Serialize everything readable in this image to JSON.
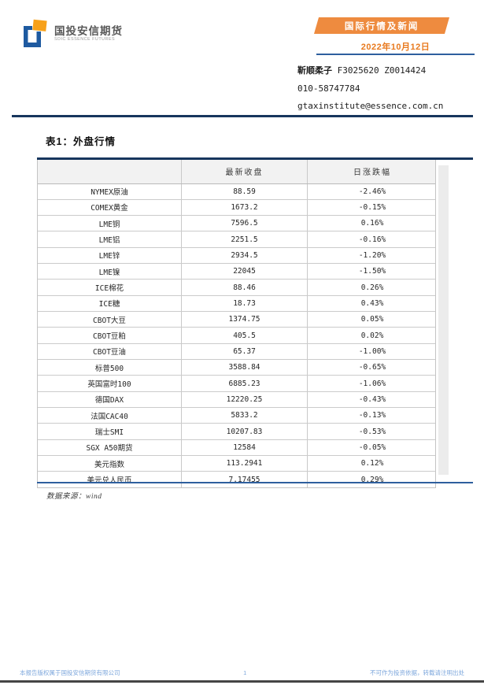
{
  "header": {
    "logo": {
      "cn": "国投安信期货",
      "en": "SDIC ESSENCE FUTURES"
    },
    "badge": "国际行情及新闻",
    "date": "2022年10月12日",
    "analyst": {
      "name": "靳顺柔子",
      "ids": "F3025620 Z0014424",
      "phone": "010-58747784",
      "email": "gtaxinstitute@essence.com.cn"
    }
  },
  "table": {
    "title": "表1：外盘行情",
    "columns": [
      "",
      "最新收盘",
      "日涨跌幅"
    ],
    "rows": [
      {
        "name": "NYMEX原油",
        "close": "88.59",
        "change": "-2.46%"
      },
      {
        "name": "COMEX黄金",
        "close": "1673.2",
        "change": "-0.15%"
      },
      {
        "name": "LME铜",
        "close": "7596.5",
        "change": "0.16%"
      },
      {
        "name": "LME铝",
        "close": "2251.5",
        "change": "-0.16%"
      },
      {
        "name": "LME锌",
        "close": "2934.5",
        "change": "-1.20%"
      },
      {
        "name": "LME镍",
        "close": "22045",
        "change": "-1.50%"
      },
      {
        "name": "ICE棉花",
        "close": "88.46",
        "change": "0.26%"
      },
      {
        "name": "ICE糖",
        "close": "18.73",
        "change": "0.43%"
      },
      {
        "name": "CBOT大豆",
        "close": "1374.75",
        "change": "0.05%"
      },
      {
        "name": "CBOT豆粕",
        "close": "405.5",
        "change": "0.02%"
      },
      {
        "name": "CBOT豆油",
        "close": "65.37",
        "change": "-1.00%"
      },
      {
        "name": "标普500",
        "close": "3588.84",
        "change": "-0.65%"
      },
      {
        "name": "英国富时100",
        "close": "6885.23",
        "change": "-1.06%"
      },
      {
        "name": "德国DAX",
        "close": "12220.25",
        "change": "-0.43%"
      },
      {
        "name": "法国CAC40",
        "close": "5833.2",
        "change": "-0.13%"
      },
      {
        "name": "瑞士SMI",
        "close": "10207.83",
        "change": "-0.53%"
      },
      {
        "name": "SGX A50期货",
        "close": "12584",
        "change": "-0.05%"
      },
      {
        "name": "美元指数",
        "close": "113.2941",
        "change": "0.12%"
      },
      {
        "name": "美元兑人民币",
        "close": "7.17455",
        "change": "0.29%"
      }
    ],
    "source": "数据来源：wind"
  },
  "footer": {
    "left": "本报告版权属于国投安信期货有限公司",
    "page": "1",
    "right": "不可作为投资依据，转载请注明出处"
  },
  "colors": {
    "badge_orange": "#ee8b3f",
    "date_orange": "#e8791d",
    "navy": "#17365d",
    "mid_blue": "#2e5f9e",
    "footer_blue": "#7da7dc",
    "logo_blue": "#1e5aa0",
    "logo_orange": "#f7a11a"
  }
}
